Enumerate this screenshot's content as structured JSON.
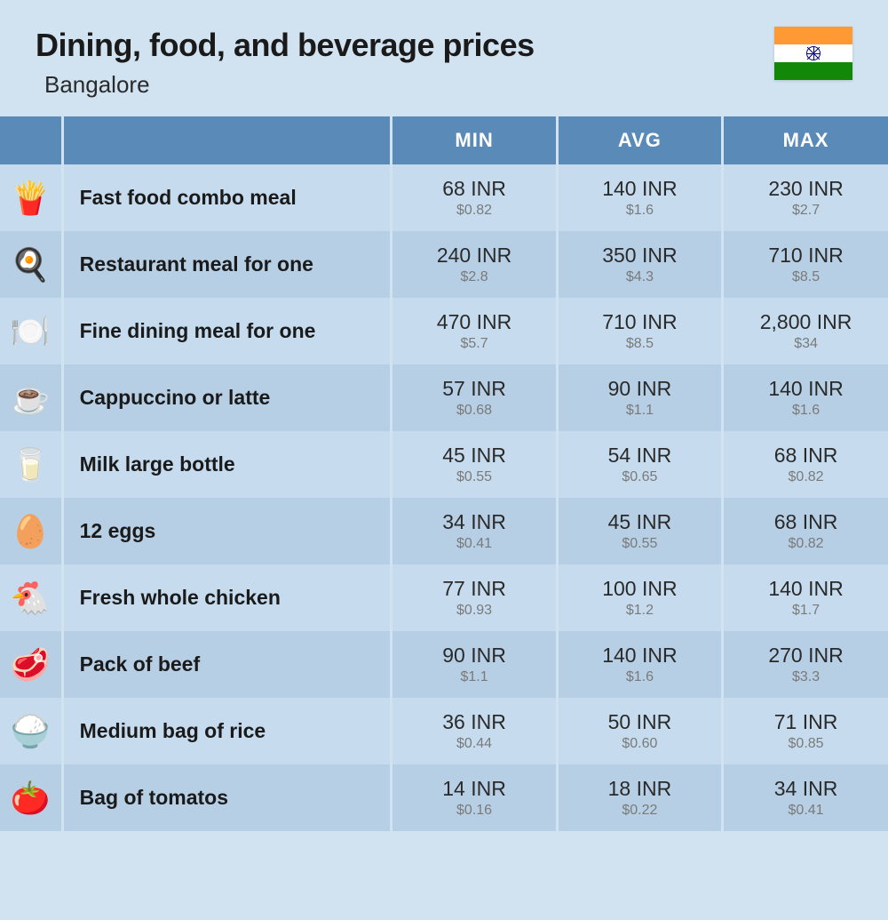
{
  "title": "Dining, food, and beverage prices",
  "subtitle": "Bangalore",
  "flag": {
    "top_color": "#ff9933",
    "mid_color": "#ffffff",
    "bot_color": "#138808",
    "chakra_color": "#000080"
  },
  "columns": [
    "",
    "",
    "MIN",
    "AVG",
    "MAX"
  ],
  "currency_primary": "INR",
  "currency_secondary_prefix": "$",
  "colors": {
    "page_bg": "#d1e3f1",
    "header_bg": "#5a8bb8",
    "header_text": "#ffffff",
    "row_odd": "#c6dcee",
    "row_even": "#b6cfe5",
    "text_main": "#1a1a1a",
    "text_sub": "#7a7a7a"
  },
  "typography": {
    "title_fontsize": 36,
    "title_weight": 800,
    "subtitle_fontsize": 26,
    "header_fontsize": 22,
    "label_fontsize": 23,
    "price_fontsize": 23,
    "price_sub_fontsize": 16
  },
  "rows": [
    {
      "icon": "🍟",
      "label": "Fast food combo meal",
      "min_inr": "68 INR",
      "min_usd": "$0.82",
      "avg_inr": "140 INR",
      "avg_usd": "$1.6",
      "max_inr": "230 INR",
      "max_usd": "$2.7"
    },
    {
      "icon": "🍳",
      "label": "Restaurant meal for one",
      "min_inr": "240 INR",
      "min_usd": "$2.8",
      "avg_inr": "350 INR",
      "avg_usd": "$4.3",
      "max_inr": "710 INR",
      "max_usd": "$8.5"
    },
    {
      "icon": "🍽️",
      "label": "Fine dining meal for one",
      "min_inr": "470 INR",
      "min_usd": "$5.7",
      "avg_inr": "710 INR",
      "avg_usd": "$8.5",
      "max_inr": "2,800 INR",
      "max_usd": "$34"
    },
    {
      "icon": "☕",
      "label": "Cappuccino or latte",
      "min_inr": "57 INR",
      "min_usd": "$0.68",
      "avg_inr": "90 INR",
      "avg_usd": "$1.1",
      "max_inr": "140 INR",
      "max_usd": "$1.6"
    },
    {
      "icon": "🥛",
      "label": "Milk large bottle",
      "min_inr": "45 INR",
      "min_usd": "$0.55",
      "avg_inr": "54 INR",
      "avg_usd": "$0.65",
      "max_inr": "68 INR",
      "max_usd": "$0.82"
    },
    {
      "icon": "🥚",
      "label": "12 eggs",
      "min_inr": "34 INR",
      "min_usd": "$0.41",
      "avg_inr": "45 INR",
      "avg_usd": "$0.55",
      "max_inr": "68 INR",
      "max_usd": "$0.82"
    },
    {
      "icon": "🐔",
      "label": "Fresh whole chicken",
      "min_inr": "77 INR",
      "min_usd": "$0.93",
      "avg_inr": "100 INR",
      "avg_usd": "$1.2",
      "max_inr": "140 INR",
      "max_usd": "$1.7"
    },
    {
      "icon": "🥩",
      "label": "Pack of beef",
      "min_inr": "90 INR",
      "min_usd": "$1.1",
      "avg_inr": "140 INR",
      "avg_usd": "$1.6",
      "max_inr": "270 INR",
      "max_usd": "$3.3"
    },
    {
      "icon": "🍚",
      "label": "Medium bag of rice",
      "min_inr": "36 INR",
      "min_usd": "$0.44",
      "avg_inr": "50 INR",
      "avg_usd": "$0.60",
      "max_inr": "71 INR",
      "max_usd": "$0.85"
    },
    {
      "icon": "🍅",
      "label": "Bag of tomatos",
      "min_inr": "14 INR",
      "min_usd": "$0.16",
      "avg_inr": "18 INR",
      "avg_usd": "$0.22",
      "max_inr": "34 INR",
      "max_usd": "$0.41"
    }
  ]
}
